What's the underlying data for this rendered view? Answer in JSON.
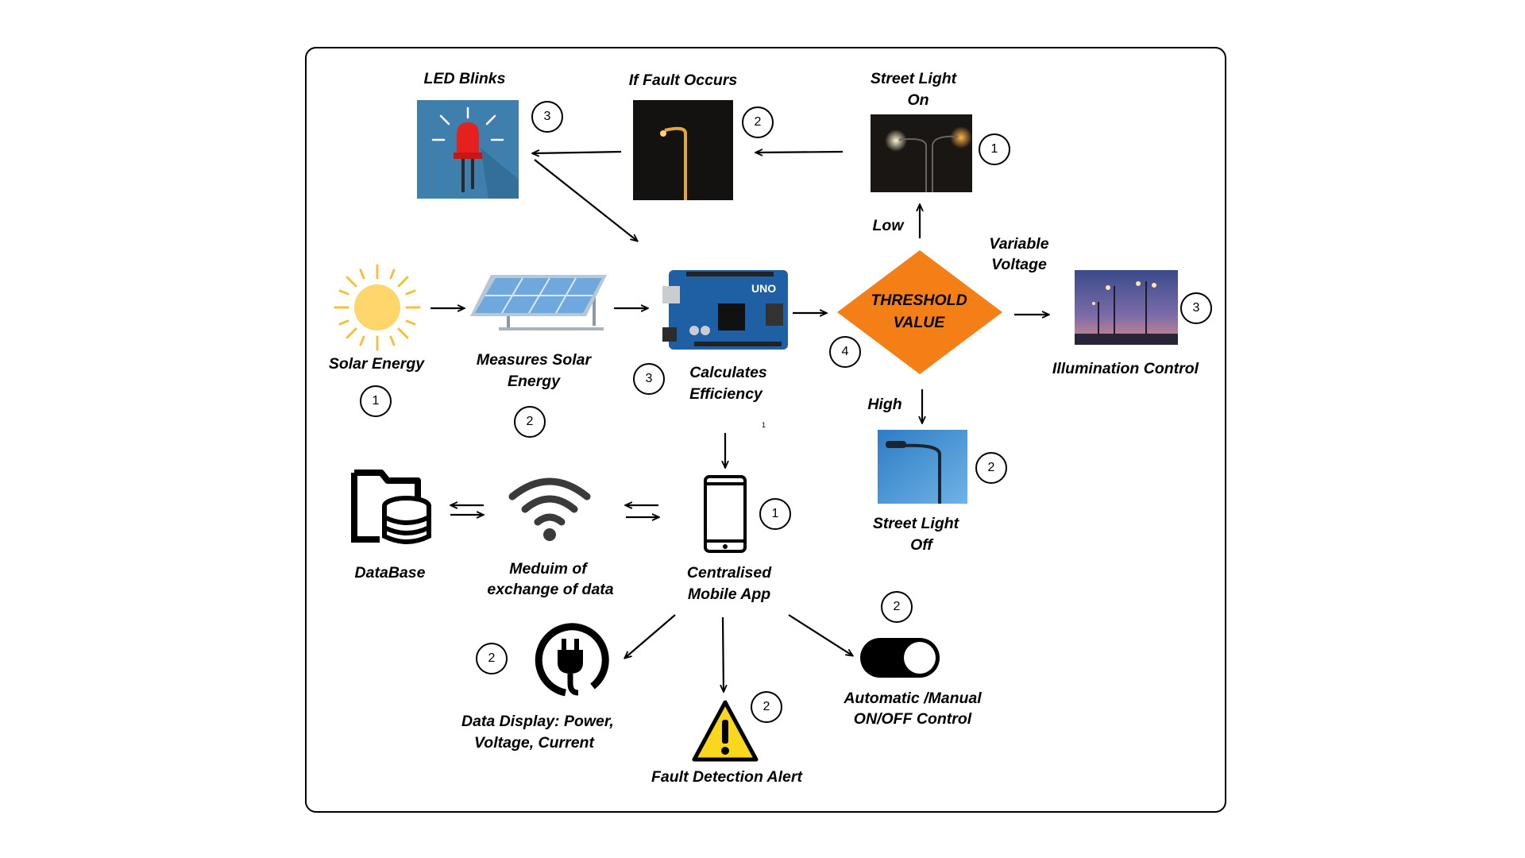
{
  "labels": {
    "solar_energy": "Solar Energy",
    "measures_solar_1": "Measures Solar",
    "measures_solar_2": "Energy",
    "calculates_1": "Calculates",
    "calculates_2": "Efficiency",
    "threshold_1": "THRESHOLD",
    "threshold_2": "VALUE",
    "variable_1": "Variable",
    "variable_2": "Voltage",
    "illumination": "Illumination Control",
    "low": "Low",
    "high": "High",
    "street_on_1": "Street Light",
    "street_on_2": "On",
    "street_off_1": "Street Light",
    "street_off_2": "Off",
    "if_fault": "If Fault Occurs",
    "led_blinks": "LED Blinks",
    "database": "DataBase",
    "medium_1": "Meduim of",
    "medium_2": "exchange of data",
    "app_1": "Centralised",
    "app_2": "Mobile App",
    "display_1": "Data  Display:  Power,",
    "display_2": "Voltage, Current",
    "fault_alert": "Fault Detection Alert",
    "auto_1": "Automatic /Manual",
    "auto_2": "ON/OFF Control",
    "tiny_mark": "1"
  },
  "steps": {
    "solar": "1",
    "panel": "2",
    "arduino": "3",
    "threshold": "4",
    "illumination": "3",
    "street_on": "1",
    "street_off": "2",
    "fault": "2",
    "led": "3",
    "phone": "1",
    "display": "2",
    "alert": "2",
    "toggle": "2"
  },
  "colors": {
    "threshold_fill": "#F57F17",
    "sun": "#FFD66B",
    "sun_rays": "#F6C03A",
    "panel_blue": "#6FA8DC",
    "arduino_blue": "#1F5FA3",
    "led_bg": "#3E7FAE",
    "led_red": "#E5201E",
    "warning_yellow": "#F9D71C",
    "sky_day": "#3F8FD3",
    "sky_dusk": "#4A5A9A"
  }
}
